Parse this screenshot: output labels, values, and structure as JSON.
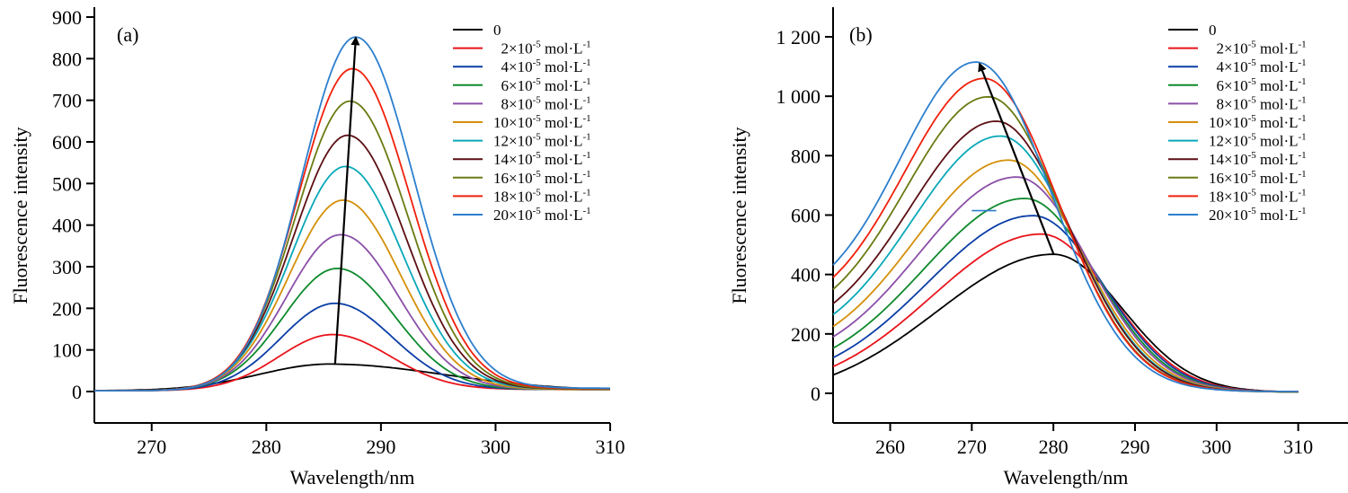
{
  "chart_data": [
    {
      "type": "line",
      "panel_label": "(a)",
      "xlabel": "Wavelength/nm",
      "ylabel": "Fluorescence intensity",
      "xlim": [
        265,
        310
      ],
      "ylim": [
        -75,
        900
      ],
      "xticks": [
        270,
        280,
        290,
        300,
        310
      ],
      "xtick_labels": [
        "270",
        "280",
        "290",
        "300",
        "310"
      ],
      "yticks": [
        0,
        100,
        200,
        300,
        400,
        500,
        600,
        700,
        800,
        900
      ],
      "ytick_labels": [
        "0",
        "100",
        "200",
        "300",
        "400",
        "500",
        "600",
        "700",
        "800",
        "900"
      ],
      "grid": false,
      "legend_position": "top-right",
      "annotation": "arrow from lowest peak to highest peak indicating increasing intensity",
      "arrow": {
        "from": [
          286,
          66
        ],
        "to": [
          287.8,
          852
        ]
      },
      "x_range": [
        265,
        310
      ],
      "series": [
        {
          "name": "0",
          "color": "#000000",
          "peak_x": 285.5,
          "peak_y": 66,
          "start_y": 2,
          "end_y": 6
        },
        {
          "name": "2×10-5 mol·L-1",
          "color": "#e8141b",
          "peak_x": 285.8,
          "peak_y": 137,
          "start_y": 2,
          "end_y": 5
        },
        {
          "name": "4×10-5 mol·L-1",
          "color": "#0a3ea6",
          "peak_x": 286.0,
          "peak_y": 212,
          "start_y": 2,
          "end_y": 5
        },
        {
          "name": "6×10-5 mol·L-1",
          "color": "#0e8a2c",
          "peak_x": 286.2,
          "peak_y": 296,
          "start_y": 2,
          "end_y": 5
        },
        {
          "name": "8×10-5 mol·L-1",
          "color": "#8b4fa8",
          "peak_x": 286.5,
          "peak_y": 377,
          "start_y": 2,
          "end_y": 5
        },
        {
          "name": "10×10-5 mol·L-1",
          "color": "#d4900a",
          "peak_x": 286.7,
          "peak_y": 460,
          "start_y": 2,
          "end_y": 5
        },
        {
          "name": "12×10-5 mol·L-1",
          "color": "#0aa8b8",
          "peak_x": 286.9,
          "peak_y": 541,
          "start_y": 2,
          "end_y": 6
        },
        {
          "name": "14×10-5 mol·L-1",
          "color": "#5c0f14",
          "peak_x": 287.1,
          "peak_y": 616,
          "start_y": 2,
          "end_y": 6
        },
        {
          "name": "16×10-5 mol·L-1",
          "color": "#6b7a12",
          "peak_x": 287.3,
          "peak_y": 698,
          "start_y": 2,
          "end_y": 6
        },
        {
          "name": "18×10-5 mol·L-1",
          "color": "#f0200c",
          "peak_x": 287.5,
          "peak_y": 776,
          "start_y": 2,
          "end_y": 7
        },
        {
          "name": "20×10-5 mol·L-1",
          "color": "#2c7fce",
          "peak_x": 287.8,
          "peak_y": 852,
          "start_y": 2,
          "end_y": 8
        }
      ]
    },
    {
      "type": "line",
      "panel_label": "(b)",
      "xlabel": "Wavelength/nm",
      "ylabel": "Fluorescence intensity",
      "xlim": [
        253,
        315
      ],
      "ylim": [
        -100,
        1300
      ],
      "xticks": [
        260,
        270,
        280,
        290,
        300,
        310
      ],
      "xtick_labels": [
        "260",
        "270",
        "280",
        "290",
        "300",
        "310"
      ],
      "yticks": [
        0,
        200,
        400,
        600,
        800,
        1000,
        1200
      ],
      "ytick_labels": [
        "0",
        "200",
        "400",
        "600",
        "800",
        "1 000",
        "1 200"
      ],
      "grid": false,
      "legend_position": "top-right",
      "annotation": "arrow from lowest peak to highest peak indicating increasing intensity and blue shift",
      "arrow": {
        "from": [
          280,
          470
        ],
        "to": [
          271,
          1112
        ]
      },
      "x_range": [
        253,
        310
      ],
      "series": [
        {
          "name": "0",
          "color": "#000000",
          "peak_x": 280.0,
          "peak_y": 468,
          "start_y": 62,
          "end_y": 4
        },
        {
          "name": "2×10-5 mol·L-1",
          "color": "#e8141b",
          "peak_x": 278.5,
          "peak_y": 536,
          "start_y": 90,
          "end_y": 4
        },
        {
          "name": "4×10-5 mol·L-1",
          "color": "#0a3ea6",
          "peak_x": 277.5,
          "peak_y": 598,
          "start_y": 120,
          "end_y": 4
        },
        {
          "name": "6×10-5 mol·L-1",
          "color": "#0e8a2c",
          "peak_x": 276.5,
          "peak_y": 656,
          "start_y": 152,
          "end_y": 4
        },
        {
          "name": "8×10-5 mol·L-1",
          "color": "#8b4fa8",
          "peak_x": 275.5,
          "peak_y": 728,
          "start_y": 190,
          "end_y": 5
        },
        {
          "name": "10×10-5 mol·L-1",
          "color": "#d4900a",
          "peak_x": 274.5,
          "peak_y": 785,
          "start_y": 225,
          "end_y": 5
        },
        {
          "name": "12×10-5 mol·L-1",
          "color": "#0aa8b8",
          "peak_x": 273.5,
          "peak_y": 866,
          "start_y": 265,
          "end_y": 5
        },
        {
          "name": "14×10-5 mol·L-1",
          "color": "#5c0f14",
          "peak_x": 273.0,
          "peak_y": 916,
          "start_y": 302,
          "end_y": 5
        },
        {
          "name": "16×10-5 mol·L-1",
          "color": "#6b7a12",
          "peak_x": 272.0,
          "peak_y": 998,
          "start_y": 350,
          "end_y": 5
        },
        {
          "name": "18×10-5 mol·L-1",
          "color": "#f0200c",
          "peak_x": 271.5,
          "peak_y": 1060,
          "start_y": 390,
          "end_y": 6
        },
        {
          "name": "20×10-5 mol·L-1",
          "color": "#2c7fce",
          "peak_x": 270.5,
          "peak_y": 1115,
          "start_y": 432,
          "end_y": 6
        }
      ],
      "stray_mark": {
        "x": [
          270,
          273
        ],
        "y": 615,
        "color": "#2c7fce"
      }
    }
  ]
}
